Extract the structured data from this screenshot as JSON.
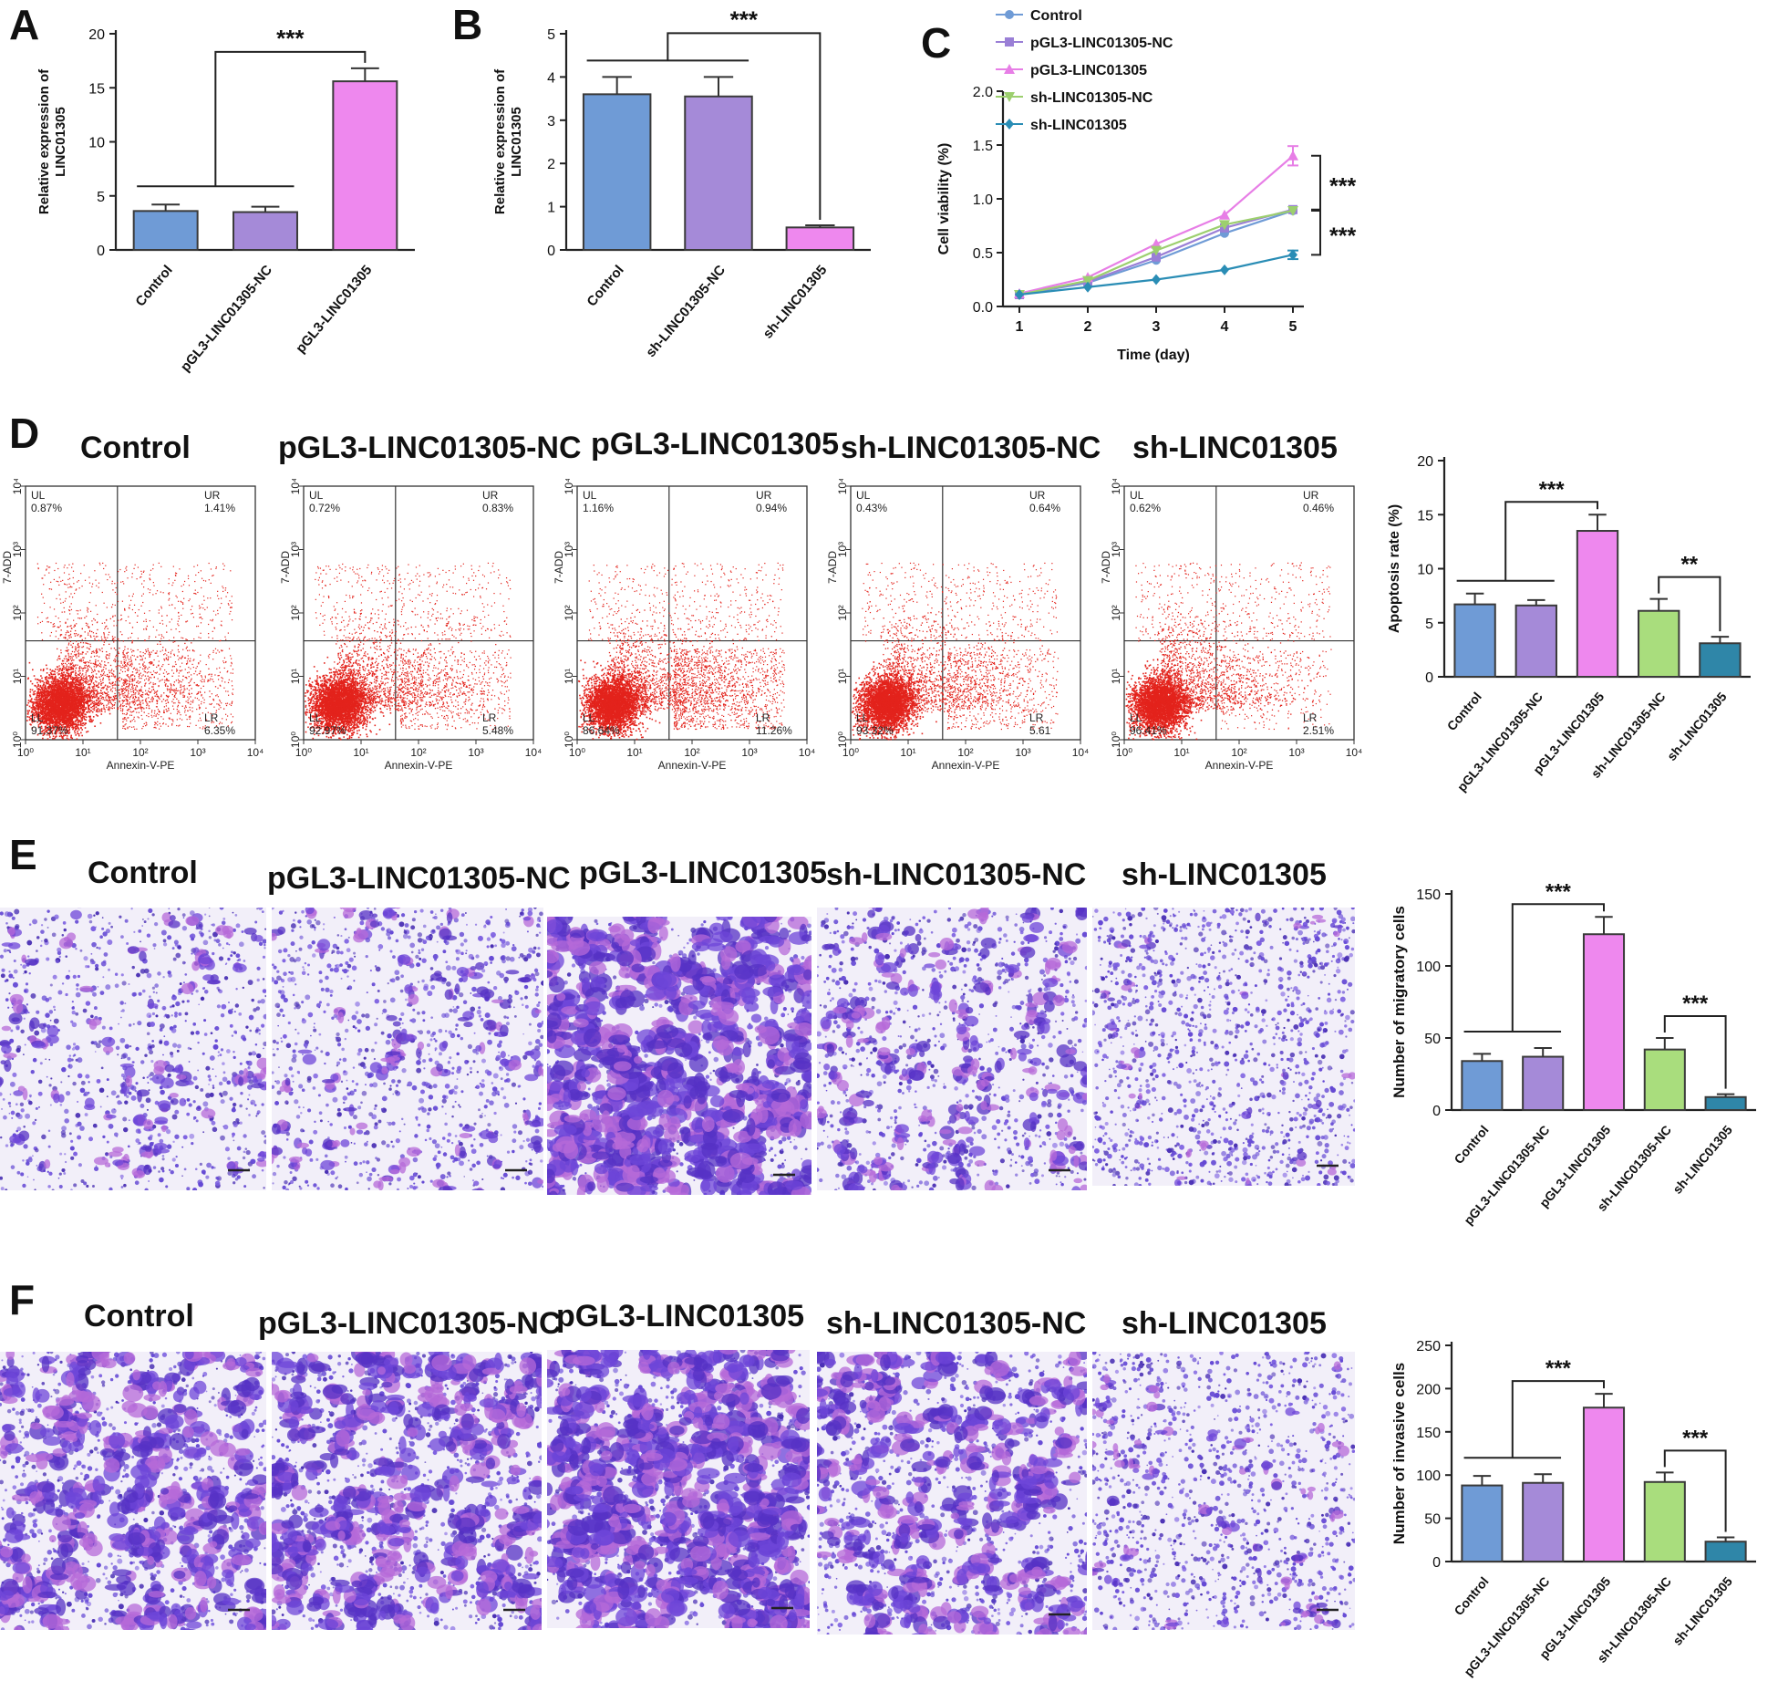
{
  "panel_letters": {
    "A": "A",
    "B": "B",
    "C": "C",
    "D": "D",
    "E": "E",
    "F": "F"
  },
  "conditions": [
    "Control",
    "pGL3-LINC01305-NC",
    "pGL3-LINC01305",
    "sh-LINC01305-NC",
    "sh-LINC01305"
  ],
  "colors": {
    "control": "#6f9bd6",
    "pgl3_nc": "#a58ad8",
    "pgl3": "#ee88ee",
    "sh_nc": "#a9dd7d",
    "sh": "#2f86a8",
    "line_control": "#6f9bd6",
    "line_pgl3_nc": "#9a7fd6",
    "line_pgl3": "#e77ee6",
    "line_sh_nc": "#9ccf6e",
    "line_sh": "#2a8db5",
    "flow_dot": "#e3231c",
    "stain": "#5b3bc8"
  },
  "significance": {
    "three": "***",
    "two": "**"
  },
  "flow": {
    "xlabel": "Annexin-V-PE",
    "ylabel": "7-ADD",
    "x_ticks": [
      "10⁰",
      "10¹",
      "10²",
      "10³",
      "10⁴"
    ],
    "y_ticks": [
      "10⁰",
      "10¹",
      "10²",
      "10³",
      "10⁴"
    ],
    "plots": [
      {
        "UL": "UL",
        "UL_v": "0.87%",
        "UR": "UR",
        "UR_v": "1.41%",
        "LL": "LL",
        "LL_v": "91.37%",
        "LR": "LR",
        "LR_v": "6.35%"
      },
      {
        "UL": "UL",
        "UL_v": "0.72%",
        "UR": "UR",
        "UR_v": "0.83%",
        "LL": "LL",
        "LL_v": "92.97%",
        "LR": "LR",
        "LR_v": "5.48%"
      },
      {
        "UL": "UL",
        "UL_v": "1.16%",
        "UR": "UR",
        "UR_v": "0.94%",
        "LL": "LL",
        "LL_v": "86.64%",
        "LR": "LR",
        "LR_v": "11.26%"
      },
      {
        "UL": "UL",
        "UL_v": "0.43%",
        "UR": "UR",
        "UR_v": "0.64%",
        "LL": "LL",
        "LL_v": "93.32%",
        "LR": "LR",
        "LR_v": "5.61"
      },
      {
        "UL": "UL",
        "UL_v": "0.62%",
        "UR": "UR",
        "UR_v": "0.46%",
        "LL": "LL",
        "LL_v": "96.41%",
        "LR": "LR",
        "LR_v": "2.51%"
      }
    ]
  },
  "chart_data": [
    {
      "id": "A",
      "type": "bar",
      "categories": [
        "Control",
        "pGL3-LINC01305-NC",
        "pGL3-LINC01305"
      ],
      "values": [
        3.6,
        3.5,
        15.6
      ],
      "errors": [
        0.6,
        0.5,
        1.2
      ],
      "ylabel": "Relative expression of LINC01305",
      "ylabel_lines": [
        "Relative expression of",
        "LINC01305"
      ],
      "ylim": [
        0,
        20
      ],
      "yticks": [
        0,
        5,
        10,
        15,
        20
      ],
      "bar_colors": [
        "control",
        "pgl3_nc",
        "pgl3"
      ],
      "annotations": [
        {
          "group_from": 0,
          "group_to": 1,
          "to": 2,
          "label": "***"
        }
      ]
    },
    {
      "id": "B",
      "type": "bar",
      "categories": [
        "Control",
        "sh-LINC01305-NC",
        "sh-LINC01305"
      ],
      "values": [
        3.6,
        3.55,
        0.52
      ],
      "errors": [
        0.4,
        0.45,
        0.05
      ],
      "ylabel": "Relative expression of LINC01305",
      "ylabel_lines": [
        "Relative expression of",
        "LINC01305"
      ],
      "ylim": [
        0,
        5
      ],
      "yticks": [
        0,
        1,
        2,
        3,
        4,
        5
      ],
      "bar_colors": [
        "control",
        "pgl3_nc",
        "pgl3"
      ],
      "annotations": [
        {
          "group_from": 0,
          "group_to": 1,
          "to": 2,
          "label": "***"
        }
      ]
    },
    {
      "id": "C",
      "type": "line",
      "x": [
        1,
        2,
        3,
        4,
        5
      ],
      "xlabel": "Time (day)",
      "ylabel": "Cell viability (%)",
      "ylim": [
        0,
        2.0
      ],
      "yticks": [
        0.0,
        0.5,
        1.0,
        1.5,
        2.0
      ],
      "ytick_labels": [
        "0.0",
        "0.5",
        "1.0",
        "1.5",
        "2.0"
      ],
      "legend_position": "top",
      "series": [
        {
          "name": "Control",
          "marker": "circle",
          "color": "line_control",
          "values": [
            0.11,
            0.22,
            0.43,
            0.68,
            0.89
          ]
        },
        {
          "name": "pGL3-LINC01305-NC",
          "marker": "square",
          "color": "line_pgl3_nc",
          "values": [
            0.11,
            0.23,
            0.46,
            0.73,
            0.9
          ]
        },
        {
          "name": "pGL3-LINC01305",
          "marker": "triangle-up",
          "color": "line_pgl3",
          "values": [
            0.12,
            0.27,
            0.58,
            0.85,
            1.4
          ]
        },
        {
          "name": "sh-LINC01305-NC",
          "marker": "triangle-down",
          "color": "line_sh_nc",
          "values": [
            0.11,
            0.24,
            0.52,
            0.76,
            0.89
          ]
        },
        {
          "name": "sh-LINC01305",
          "marker": "diamond",
          "color": "line_sh",
          "values": [
            0.11,
            0.18,
            0.25,
            0.34,
            0.48
          ]
        }
      ],
      "annotations": [
        {
          "label": "***",
          "from": 1.4,
          "to": 0.9
        },
        {
          "label": "***",
          "from": 0.89,
          "to": 0.48
        }
      ]
    },
    {
      "id": "D",
      "type": "bar",
      "categories": [
        "Control",
        "pGL3-LINC01305-NC",
        "pGL3-LINC01305",
        "sh-LINC01305-NC",
        "sh-LINC01305"
      ],
      "values": [
        6.7,
        6.6,
        13.5,
        6.1,
        3.1
      ],
      "errors": [
        1.0,
        0.5,
        1.5,
        1.1,
        0.6
      ],
      "ylabel": "Apoptosis rate (%)",
      "ylim": [
        0,
        20
      ],
      "yticks": [
        0,
        5,
        10,
        15,
        20
      ],
      "bar_colors": [
        "control",
        "pgl3_nc",
        "pgl3",
        "sh_nc",
        "sh"
      ],
      "annotations": [
        {
          "group_from": 0,
          "group_to": 1,
          "to": 2,
          "label": "***"
        },
        {
          "from": 3,
          "to": 4,
          "label": "**"
        }
      ]
    },
    {
      "id": "E",
      "type": "bar",
      "categories": [
        "Control",
        "pGL3-LINC01305-NC",
        "pGL3-LINC01305",
        "sh-LINC01305-NC",
        "sh-LINC01305"
      ],
      "values": [
        34,
        37,
        122,
        42,
        9
      ],
      "errors": [
        5,
        6,
        12,
        8,
        2
      ],
      "ylabel": "Number of migratory cells",
      "ylim": [
        0,
        150
      ],
      "yticks": [
        0,
        50,
        100,
        150
      ],
      "bar_colors": [
        "control",
        "pgl3_nc",
        "pgl3",
        "sh_nc",
        "sh"
      ],
      "annotations": [
        {
          "group_from": 0,
          "group_to": 1,
          "to": 2,
          "label": "***"
        },
        {
          "from": 3,
          "to": 4,
          "label": "***"
        }
      ]
    },
    {
      "id": "F",
      "type": "bar",
      "categories": [
        "Control",
        "pGL3-LINC01305-NC",
        "pGL3-LINC01305",
        "sh-LINC01305-NC",
        "sh-LINC01305"
      ],
      "values": [
        88,
        91,
        178,
        92,
        23
      ],
      "errors": [
        11,
        10,
        16,
        11,
        5
      ],
      "ylabel": "Number of invasive cells",
      "ylim": [
        0,
        250
      ],
      "yticks": [
        0,
        50,
        100,
        150,
        200,
        250
      ],
      "bar_colors": [
        "control",
        "pgl3_nc",
        "pgl3",
        "sh_nc",
        "sh"
      ],
      "annotations": [
        {
          "group_from": 0,
          "group_to": 1,
          "to": 2,
          "label": "***"
        },
        {
          "from": 3,
          "to": 4,
          "label": "***"
        }
      ]
    }
  ]
}
